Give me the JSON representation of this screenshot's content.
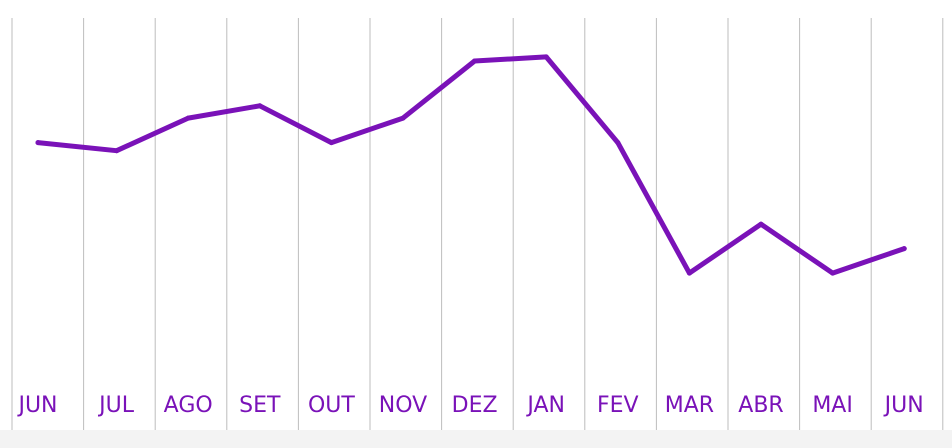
{
  "chart_data": {
    "type": "line",
    "categories": [
      "JUN",
      "JUL",
      "AGO",
      "SET",
      "OUT",
      "NOV",
      "DEZ",
      "JAN",
      "FEV",
      "MAR",
      "ABR",
      "MAI",
      "JUN"
    ],
    "series": [
      {
        "values": [
          68,
          66,
          74,
          77,
          68,
          74,
          88,
          89,
          68,
          36,
          48,
          36,
          42
        ]
      }
    ],
    "ylim": [
      0,
      100
    ],
    "grid": "vertical",
    "title": "",
    "xlabel": "",
    "ylabel": "",
    "colors": {
      "line": "#7a12b8",
      "tick_labels": "#7a12b8",
      "grid": "#bdbdbd"
    }
  }
}
